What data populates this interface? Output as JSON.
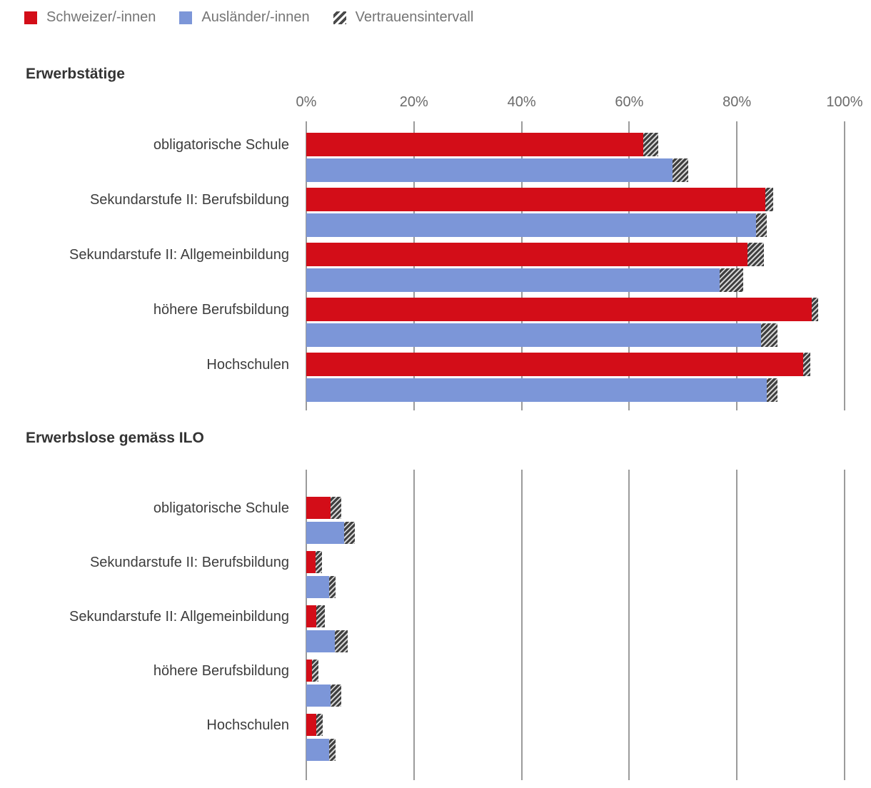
{
  "legend": {
    "items": [
      {
        "label": "Schweizer/-innen",
        "swatch": "red",
        "color": "#d30d18"
      },
      {
        "label": "Ausländer/-innen",
        "swatch": "blue",
        "color": "#7c96d8"
      },
      {
        "label": "Vertrauensintervall",
        "swatch": "hatch"
      }
    ]
  },
  "colors": {
    "swiss_red": "#d30d18",
    "foreign_blue": "#7c96d8",
    "gridline": "#9b9b9b",
    "hatch_dark": "#3e3e3e",
    "hatch_light": "#d4d4d4",
    "title_text": "#333333",
    "label_text": "#3d3d3d",
    "tick_text": "#6b6b6b",
    "legend_text": "#757575"
  },
  "chart_data": [
    {
      "type": "bar",
      "orientation": "horizontal",
      "title": "Erwerbstätige",
      "categories": [
        "obligatorische Schule",
        "Sekundarstufe II: Berufsbildung",
        "Sekundarstufe II: Allgemeinbildung",
        "höhere Berufsbildung",
        "Hochschulen"
      ],
      "series": [
        {
          "name": "Schweizer/-innen",
          "color": "#d30d18",
          "values": [
            64,
            86,
            83.5,
            94.5,
            93
          ],
          "ci": [
            1.4,
            0.7,
            1.5,
            0.6,
            0.7
          ]
        },
        {
          "name": "Ausländer/-innen",
          "color": "#7c96d8",
          "values": [
            69.5,
            84.5,
            79,
            86,
            86.5
          ],
          "ci": [
            1.5,
            1.0,
            2.2,
            1.5,
            1.0
          ]
        }
      ],
      "xlabel": "",
      "ylabel": "",
      "xlim": [
        0,
        100
      ],
      "xticks": [
        0,
        20,
        40,
        60,
        80,
        100
      ],
      "xtick_labels": [
        "0%",
        "20%",
        "40%",
        "60%",
        "80%",
        "100%"
      ],
      "grid": true,
      "tick_labels_visible": true,
      "legend_position": "top",
      "ci_note": "hatched segment at bar end = Vertrauensintervall"
    },
    {
      "type": "bar",
      "orientation": "horizontal",
      "title": "Erwerbslose gemäss ILO",
      "categories": [
        "obligatorische Schule",
        "Sekundarstufe II: Berufsbildung",
        "Sekundarstufe II: Allgemeinbildung",
        "höhere Berufsbildung",
        "Hochschulen"
      ],
      "series": [
        {
          "name": "Schweizer/-innen",
          "color": "#d30d18",
          "values": [
            5.5,
            2.3,
            2.7,
            1.6,
            2.5
          ],
          "ci": [
            1.0,
            0.4,
            0.8,
            0.3,
            0.4
          ]
        },
        {
          "name": "Ausländer/-innen",
          "color": "#7c96d8",
          "values": [
            8,
            4.8,
            6.5,
            5.5,
            4.8
          ],
          "ci": [
            1.0,
            0.6,
            1.2,
            1.0,
            0.5
          ]
        }
      ],
      "xlabel": "",
      "ylabel": "",
      "xlim": [
        0,
        100
      ],
      "xticks": [
        0,
        20,
        40,
        60,
        80,
        100
      ],
      "xtick_labels": [
        "0%",
        "20%",
        "40%",
        "60%",
        "80%",
        "100%"
      ],
      "grid": true,
      "tick_labels_visible": false,
      "legend_position": "top",
      "ci_note": "hatched segment at bar end = Vertrauensintervall"
    }
  ]
}
